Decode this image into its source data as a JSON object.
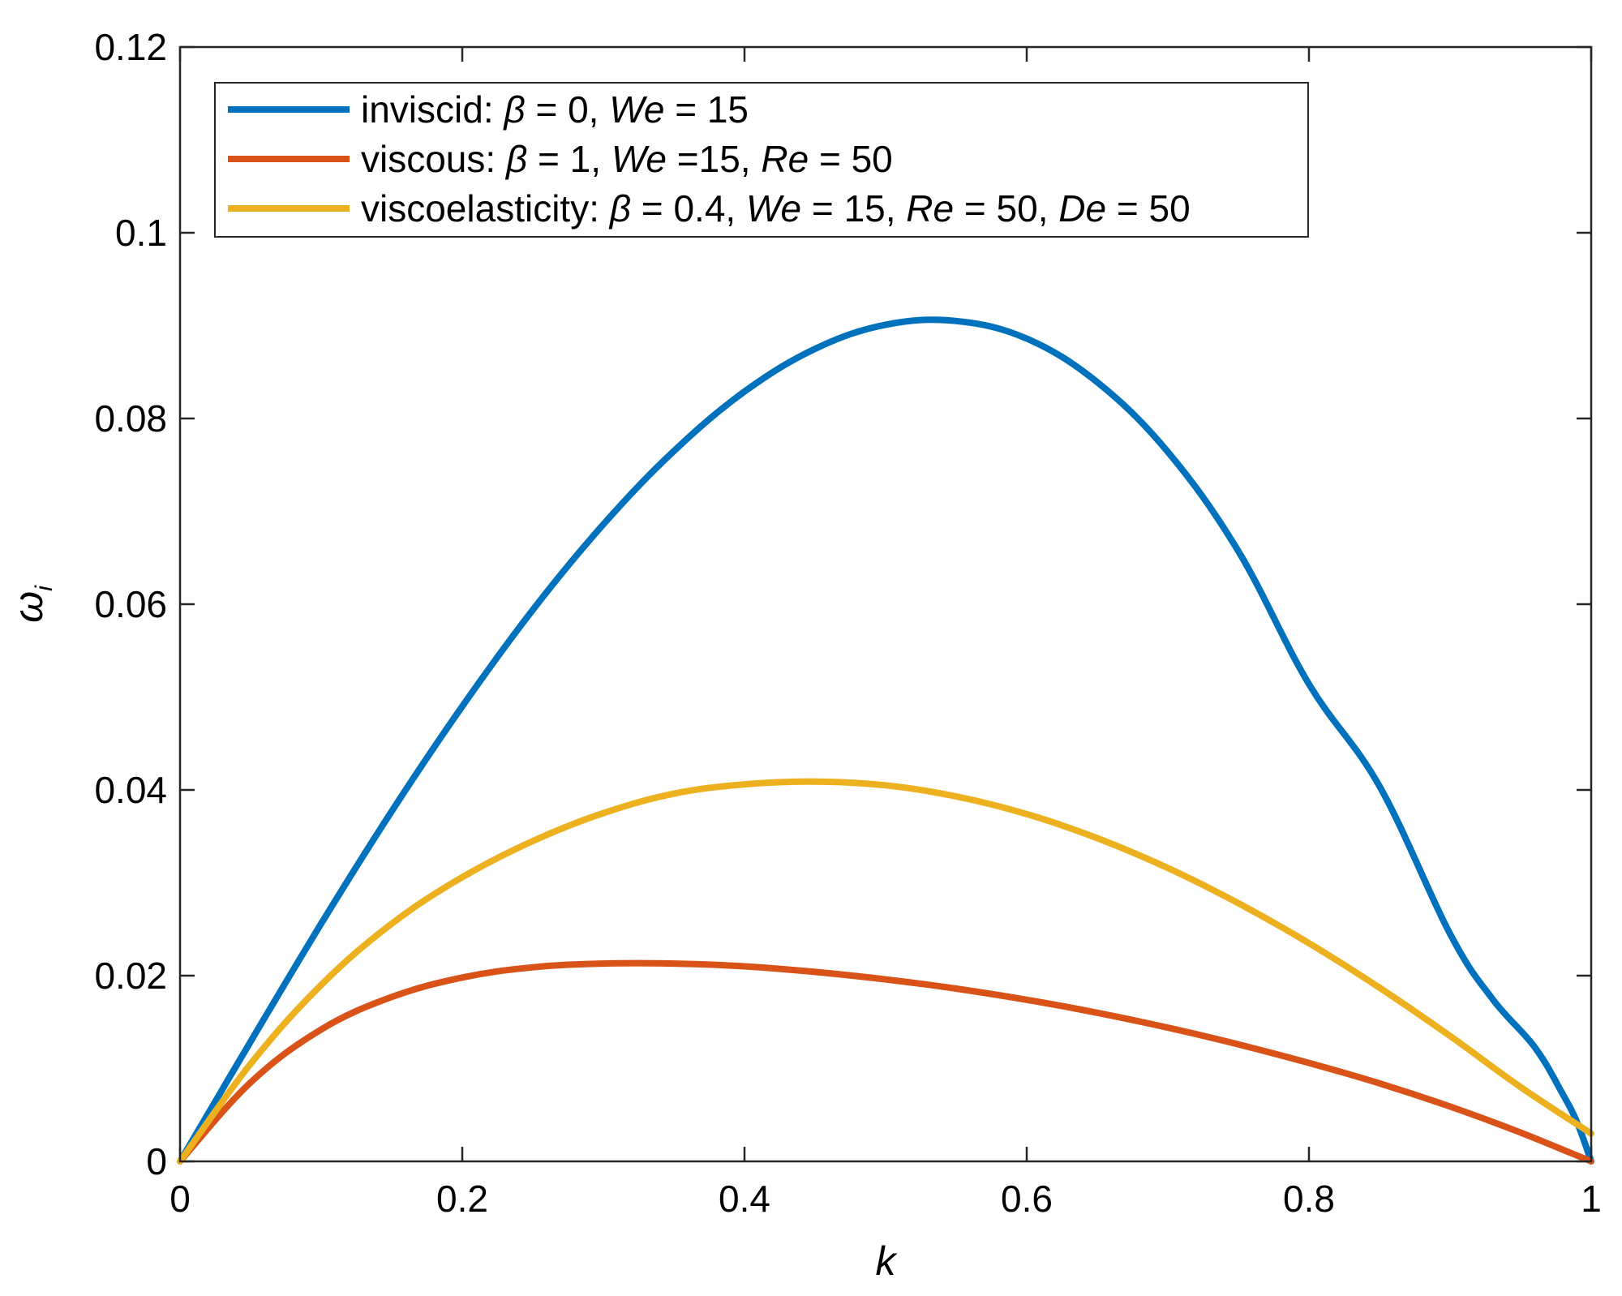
{
  "chart_data": {
    "type": "line",
    "xlabel": "k",
    "ylabel": "ω",
    "ylabel_subscript": "i",
    "xlim": [
      0,
      1
    ],
    "ylim": [
      0,
      0.12
    ],
    "xticks": [
      "0",
      "0.2",
      "0.4",
      "0.6",
      "0.8",
      "1"
    ],
    "yticks": [
      "0",
      "0.02",
      "0.04",
      "0.06",
      "0.08",
      "0.1",
      "0.12"
    ],
    "grid": false,
    "legend_position": "top-left",
    "series": [
      {
        "name": "inviscid: β = 0, We = 15",
        "color": "#0072BD",
        "x": [
          0,
          0.05,
          0.1,
          0.15,
          0.2,
          0.25,
          0.3,
          0.35,
          0.4,
          0.45,
          0.5,
          0.55,
          0.6,
          0.65,
          0.7,
          0.75,
          0.8,
          0.85,
          0.9,
          0.93,
          0.96,
          0.98,
          0.99,
          1.0
        ],
        "y": [
          0,
          0.0129,
          0.0256,
          0.0377,
          0.049,
          0.0594,
          0.0686,
          0.0765,
          0.0829,
          0.0875,
          0.0901,
          0.0905,
          0.0886,
          0.0839,
          0.0764,
          0.0657,
          0.0514,
          0.0404,
          0.0245,
          0.0175,
          0.0123,
          0.0072,
          0.0042,
          0.0
        ]
      },
      {
        "name": "viscous: β = 1, We =15, Re = 50",
        "color": "#D95319",
        "x": [
          0,
          0.05,
          0.1,
          0.15,
          0.2,
          0.25,
          0.3,
          0.35,
          0.4,
          0.45,
          0.5,
          0.55,
          0.6,
          0.65,
          0.7,
          0.75,
          0.8,
          0.85,
          0.9,
          0.95,
          1.0
        ],
        "y": [
          0,
          0.0085,
          0.0142,
          0.0177,
          0.0198,
          0.0209,
          0.0213,
          0.0213,
          0.021,
          0.0204,
          0.0196,
          0.0186,
          0.0174,
          0.016,
          0.0144,
          0.0126,
          0.0106,
          0.0084,
          0.0059,
          0.0031,
          0.0
        ]
      },
      {
        "name": "viscoelasticity: β = 0.4, We = 15, Re = 50, De = 50",
        "color": "#EDB120",
        "x": [
          0,
          0.05,
          0.1,
          0.15,
          0.2,
          0.25,
          0.3,
          0.35,
          0.4,
          0.45,
          0.5,
          0.55,
          0.6,
          0.65,
          0.7,
          0.75,
          0.8,
          0.85,
          0.9,
          0.95,
          1.0
        ],
        "y": [
          0,
          0.0105,
          0.019,
          0.0256,
          0.0306,
          0.0345,
          0.0375,
          0.0396,
          0.0406,
          0.0409,
          0.0405,
          0.0393,
          0.0374,
          0.0348,
          0.0316,
          0.0278,
          0.0235,
          0.0187,
          0.0135,
          0.008,
          0.003
        ]
      }
    ]
  }
}
